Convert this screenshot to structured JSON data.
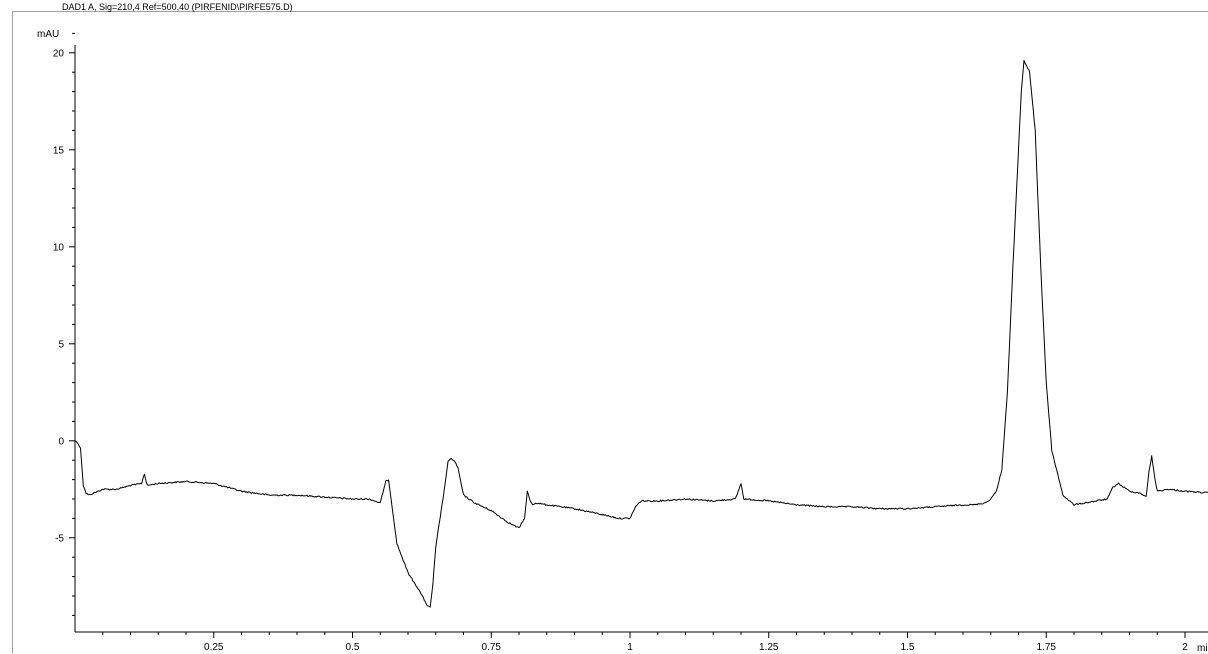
{
  "chart_data": {
    "type": "line",
    "title": "DAD1 A, Sig=210,4 Ref=500,40 (PIRFENID\\PIRFE575.D)",
    "ylabel": "mAU",
    "xlabel": "mi",
    "xlim": [
      0,
      2.05
    ],
    "ylim": [
      -10,
      21
    ],
    "x_ticks": [
      0.25,
      0.5,
      0.75,
      1,
      1.25,
      1.5,
      1.75,
      2
    ],
    "x_tick_labels": [
      "0.25",
      "0.5",
      "0.75",
      "1",
      "1.25",
      "1.5",
      "1.75",
      "2"
    ],
    "y_ticks": [
      -5,
      0,
      5,
      10,
      15,
      20
    ],
    "y_tick_labels": [
      "-5",
      "0",
      "5",
      "10",
      "15",
      "20"
    ],
    "grid": false,
    "series": [
      {
        "color": "#000000",
        "x": [
          0.0,
          0.005,
          0.01,
          0.015,
          0.02,
          0.025,
          0.05,
          0.075,
          0.1,
          0.12,
          0.125,
          0.13,
          0.15,
          0.2,
          0.25,
          0.3,
          0.35,
          0.4,
          0.45,
          0.5,
          0.53,
          0.55,
          0.56,
          0.565,
          0.58,
          0.6,
          0.62,
          0.635,
          0.64,
          0.645,
          0.65,
          0.655,
          0.665,
          0.672,
          0.678,
          0.685,
          0.69,
          0.7,
          0.72,
          0.75,
          0.78,
          0.8,
          0.81,
          0.815,
          0.82,
          0.825,
          0.83,
          0.85,
          0.9,
          0.95,
          0.98,
          1.0,
          1.01,
          1.02,
          1.05,
          1.1,
          1.15,
          1.19,
          1.2,
          1.205,
          1.25,
          1.3,
          1.35,
          1.4,
          1.45,
          1.5,
          1.55,
          1.6,
          1.62,
          1.64,
          1.65,
          1.66,
          1.67,
          1.68,
          1.69,
          1.7,
          1.705,
          1.71,
          1.72,
          1.73,
          1.74,
          1.75,
          1.76,
          1.78,
          1.8,
          1.82,
          1.84,
          1.86,
          1.87,
          1.88,
          1.9,
          1.92,
          1.93,
          1.935,
          1.94,
          1.945,
          1.95,
          1.97,
          2.0,
          2.05
        ],
        "values": [
          0.0,
          -0.1,
          -0.4,
          -2.3,
          -2.7,
          -2.8,
          -2.5,
          -2.5,
          -2.3,
          -2.2,
          -1.7,
          -2.3,
          -2.2,
          -2.1,
          -2.2,
          -2.6,
          -2.8,
          -2.8,
          -2.9,
          -3.0,
          -3.0,
          -3.2,
          -2.1,
          -2.0,
          -5.3,
          -6.8,
          -7.7,
          -8.5,
          -8.6,
          -7.3,
          -5.5,
          -4.5,
          -2.6,
          -1.1,
          -0.9,
          -1.1,
          -1.4,
          -2.8,
          -3.2,
          -3.6,
          -4.2,
          -4.5,
          -4.0,
          -2.6,
          -3.1,
          -3.3,
          -3.2,
          -3.3,
          -3.5,
          -3.8,
          -4.0,
          -4.0,
          -3.4,
          -3.1,
          -3.1,
          -3.0,
          -3.1,
          -3.0,
          -2.2,
          -3.0,
          -3.1,
          -3.3,
          -3.4,
          -3.4,
          -3.5,
          -3.5,
          -3.4,
          -3.3,
          -3.3,
          -3.2,
          -3.0,
          -2.6,
          -1.5,
          2.5,
          9.0,
          15.0,
          18.0,
          19.6,
          19.0,
          16.0,
          9.0,
          3.0,
          -0.5,
          -2.8,
          -3.3,
          -3.2,
          -3.1,
          -3.0,
          -2.4,
          -2.2,
          -2.6,
          -2.7,
          -2.9,
          -1.6,
          -0.8,
          -1.8,
          -2.6,
          -2.5,
          -2.6,
          -2.7
        ]
      }
    ]
  }
}
